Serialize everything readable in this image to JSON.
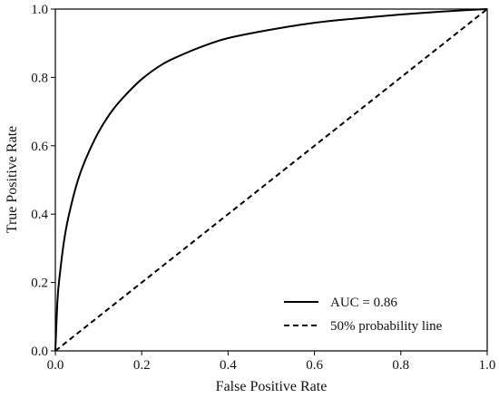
{
  "chart_data": {
    "type": "line",
    "title": "",
    "xlabel": "False Positive Rate",
    "ylabel": "True Positive Rate",
    "xlim": [
      0.0,
      1.0
    ],
    "ylim": [
      0.0,
      1.0
    ],
    "xticks": [
      "0.0",
      "0.2",
      "0.4",
      "0.6",
      "0.8",
      "1.0"
    ],
    "yticks": [
      "0.0",
      "0.2",
      "0.4",
      "0.6",
      "0.8",
      "1.0"
    ],
    "grid": false,
    "legend_position": "lower-right",
    "series": [
      {
        "name": "AUC = 0.86",
        "style": "solid",
        "color": "#000000",
        "x": [
          0.0,
          0.005,
          0.01,
          0.02,
          0.03,
          0.05,
          0.07,
          0.1,
          0.13,
          0.16,
          0.2,
          0.25,
          0.3,
          0.35,
          0.4,
          0.5,
          0.6,
          0.7,
          0.8,
          0.9,
          1.0
        ],
        "y": [
          0.0,
          0.15,
          0.22,
          0.32,
          0.39,
          0.49,
          0.56,
          0.64,
          0.7,
          0.745,
          0.795,
          0.84,
          0.87,
          0.895,
          0.915,
          0.94,
          0.96,
          0.973,
          0.984,
          0.993,
          1.0
        ]
      },
      {
        "name": "50% probability line",
        "style": "dashed",
        "color": "#000000",
        "x": [
          0.0,
          1.0
        ],
        "y": [
          0.0,
          1.0
        ]
      }
    ]
  }
}
